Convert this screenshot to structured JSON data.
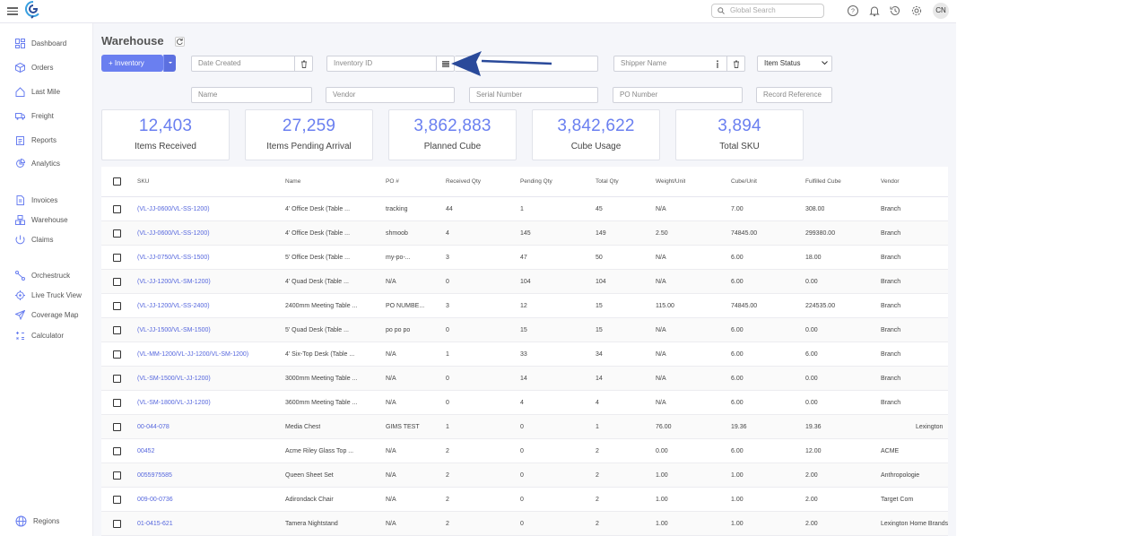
{
  "topbar": {
    "search_placeholder": "Global Search",
    "avatar": "CN",
    "icons": [
      "help-icon",
      "bell-icon",
      "history-icon",
      "settings-icon"
    ]
  },
  "sidebar": {
    "items": [
      {
        "label": "Dashboard",
        "icon": "dashboard-icon"
      },
      {
        "label": "Orders",
        "icon": "box-icon"
      },
      {
        "label": "Last Mile",
        "icon": "house-icon"
      },
      {
        "label": "Freight",
        "icon": "truck-icon"
      },
      {
        "label": "Reports",
        "icon": "clipboard-icon"
      },
      {
        "label": "Analytics",
        "icon": "pie-icon"
      },
      {
        "label": "Invoices",
        "icon": "invoice-icon"
      },
      {
        "label": "Warehouse",
        "icon": "boxes-icon"
      },
      {
        "label": "Claims",
        "icon": "claims-icon"
      },
      {
        "label": "Orchestruck",
        "icon": "route-icon"
      },
      {
        "label": "Live Truck View",
        "icon": "target-icon"
      },
      {
        "label": "Coverage Map",
        "icon": "send-icon"
      },
      {
        "label": "Calculator",
        "icon": "calculator-icon"
      }
    ],
    "regions": "Regions"
  },
  "page": {
    "title": "Warehouse",
    "inventory_button": "+ Inventory"
  },
  "filters": {
    "date_created": "Date Created",
    "inventory_id": "Inventory ID",
    "shipper_name": "Shipper Name",
    "item_status": "Item Status",
    "name": "Name",
    "vendor": "Vendor",
    "serial_number": "Serial Number",
    "po_number": "PO Number",
    "record_reference": "Record Reference"
  },
  "cards": [
    {
      "value": "12,403",
      "label": "Items Received"
    },
    {
      "value": "27,259",
      "label": "Items Pending Arrival"
    },
    {
      "value": "3,862,883",
      "label": "Planned Cube"
    },
    {
      "value": "3,842,622",
      "label": "Cube Usage"
    },
    {
      "value": "3,894",
      "label": "Total SKU"
    }
  ],
  "table": {
    "columns": [
      "SKU",
      "Name",
      "PO #",
      "Received Qty",
      "Pending Qty",
      "Total Qty",
      "Weight/Unit",
      "Cube/Unit",
      "Fulfilled Cube",
      "Vendor"
    ],
    "rows": [
      [
        "(VL-JJ-0600/VL-SS-1200)",
        "4' Office Desk (Table ...",
        "tracking",
        "44",
        "1",
        "45",
        "N/A",
        "7.00",
        "308.00",
        "Branch"
      ],
      [
        "(VL-JJ-0600/VL-SS-1200)",
        "4' Office Desk (Table ...",
        "shmoob",
        "4",
        "145",
        "149",
        "2.50",
        "74845.00",
        "299380.00",
        "Branch"
      ],
      [
        "(VL-JJ-0750/VL-SS-1500)",
        "5' Office Desk (Table ...",
        "my-po-...",
        "3",
        "47",
        "50",
        "N/A",
        "6.00",
        "18.00",
        "Branch"
      ],
      [
        "(VL-JJ-1200/VL-SM-1200)",
        "4' Quad Desk (Table ...",
        "N/A",
        "0",
        "104",
        "104",
        "N/A",
        "6.00",
        "0.00",
        "Branch"
      ],
      [
        "(VL-JJ-1200/VL-SS-2400)",
        "2400mm Meeting Table ...",
        "PO NUMBE...",
        "3",
        "12",
        "15",
        "115.00",
        "74845.00",
        "224535.00",
        "Branch"
      ],
      [
        "(VL-JJ-1500/VL-SM-1500)",
        "5' Quad Desk (Table ...",
        "po po po",
        "0",
        "15",
        "15",
        "N/A",
        "6.00",
        "0.00",
        "Branch"
      ],
      [
        "(VL-MM-1200/VL-JJ-1200/VL-SM-1200)",
        "4' Six-Top Desk (Table ...",
        "N/A",
        "1",
        "33",
        "34",
        "N/A",
        "6.00",
        "6.00",
        "Branch"
      ],
      [
        "(VL-SM-1500/VL-JJ-1200)",
        "3000mm Meeting Table ...",
        "N/A",
        "0",
        "14",
        "14",
        "N/A",
        "6.00",
        "0.00",
        "Branch"
      ],
      [
        "(VL-SM-1800/VL-JJ-1200)",
        "3600mm Meeting Table ...",
        "N/A",
        "0",
        "4",
        "4",
        "N/A",
        "6.00",
        "0.00",
        "Branch"
      ],
      [
        "00-044-078",
        "Media Chest",
        "GIMS TEST",
        "1",
        "0",
        "1",
        "76.00",
        "19.36",
        "19.36",
        "Lexington"
      ],
      [
        "00452",
        "Acme Riley Glass Top ...",
        "N/A",
        "2",
        "0",
        "2",
        "0.00",
        "6.00",
        "12.00",
        "ACME"
      ],
      [
        "0055975585",
        "Queen Sheet Set",
        "N/A",
        "2",
        "0",
        "2",
        "1.00",
        "1.00",
        "2.00",
        "Anthropologie"
      ],
      [
        "009-00-0736",
        "Adirondack Chair",
        "N/A",
        "2",
        "0",
        "2",
        "1.00",
        "1.00",
        "2.00",
        "Target Com"
      ],
      [
        "01-0415-621",
        "Tamera Nightstand",
        "N/A",
        "2",
        "0",
        "2",
        "1.00",
        "1.00",
        "2.00",
        "Lexington Home Brands"
      ]
    ]
  },
  "colors": {
    "accent": "#6a7ff0",
    "link": "#5566dd",
    "arrow": "#2a4a9a"
  }
}
